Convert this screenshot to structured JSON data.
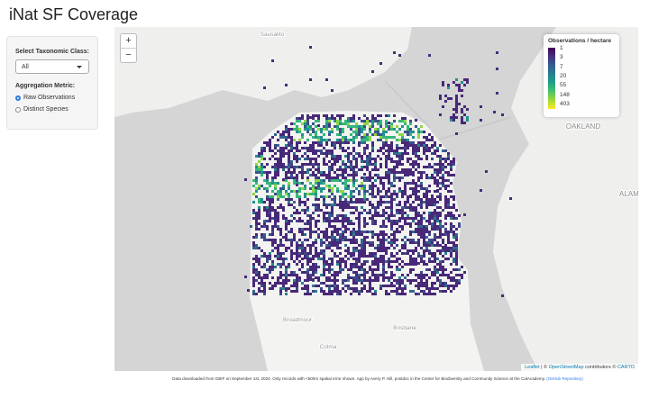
{
  "header": {
    "title": "iNat SF Coverage"
  },
  "sidebar": {
    "taxon_label": "Select Taxonomic Class:",
    "taxon_selected": "All",
    "metric_label": "Aggregation Metric:",
    "metric_options": [
      "Raw Observations",
      "Distinct Species"
    ]
  },
  "map": {
    "zoom_in": "+",
    "zoom_out": "−",
    "place_labels": [
      "Sausalito",
      "OAKLAND",
      "ALAM",
      "Broadmoor",
      "Brisbane",
      "Colma"
    ],
    "legend": {
      "title": "Observations / hectare",
      "ticks": [
        1,
        3,
        7,
        20,
        55,
        148,
        403
      ]
    },
    "attribution": {
      "leaflet": "Leaflet",
      "sep": "|",
      "osm_prefix": "©",
      "osm": "OpenStreetMap",
      "carto_prefix": "contributors ©",
      "carto": "CARTO"
    }
  },
  "footer": {
    "text": "Data downloaded from GBIF on September 1st, 2024. Only records with <500m spatial error shown. App by Avery P. Hill, postdoc in the Center for Biodiversity and Community Science at the CalAcademy.",
    "link": "(GitHub Repository)"
  }
}
